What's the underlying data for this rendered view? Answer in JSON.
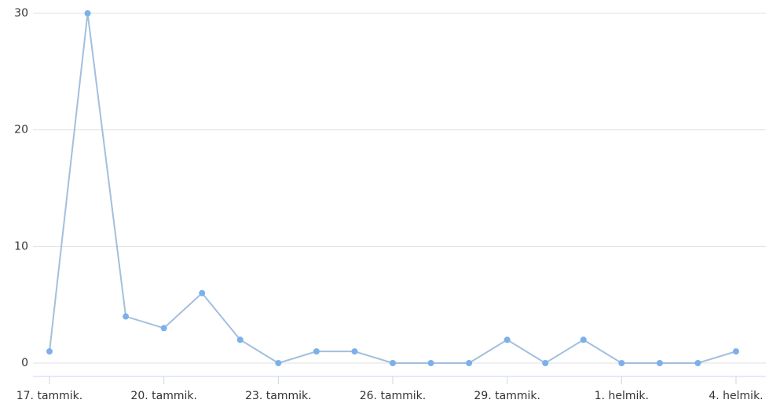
{
  "chart_data": {
    "type": "line",
    "categories": [
      "17. tammik.",
      null,
      null,
      "20. tammik.",
      null,
      null,
      "23. tammik.",
      null,
      null,
      "26. tammik.",
      null,
      null,
      "29. tammik.",
      null,
      null,
      "1. helmik.",
      null,
      null,
      "4. helmik."
    ],
    "series": [
      {
        "color": "#7cb0ea",
        "values": [
          1,
          30,
          4,
          3,
          6,
          2,
          0,
          1,
          1,
          0,
          0,
          0,
          2,
          0,
          2,
          0,
          0,
          0,
          1
        ]
      }
    ],
    "ylim": [
      0,
      30
    ],
    "yticks": [
      0,
      10,
      20,
      30
    ],
    "grid": true
  }
}
